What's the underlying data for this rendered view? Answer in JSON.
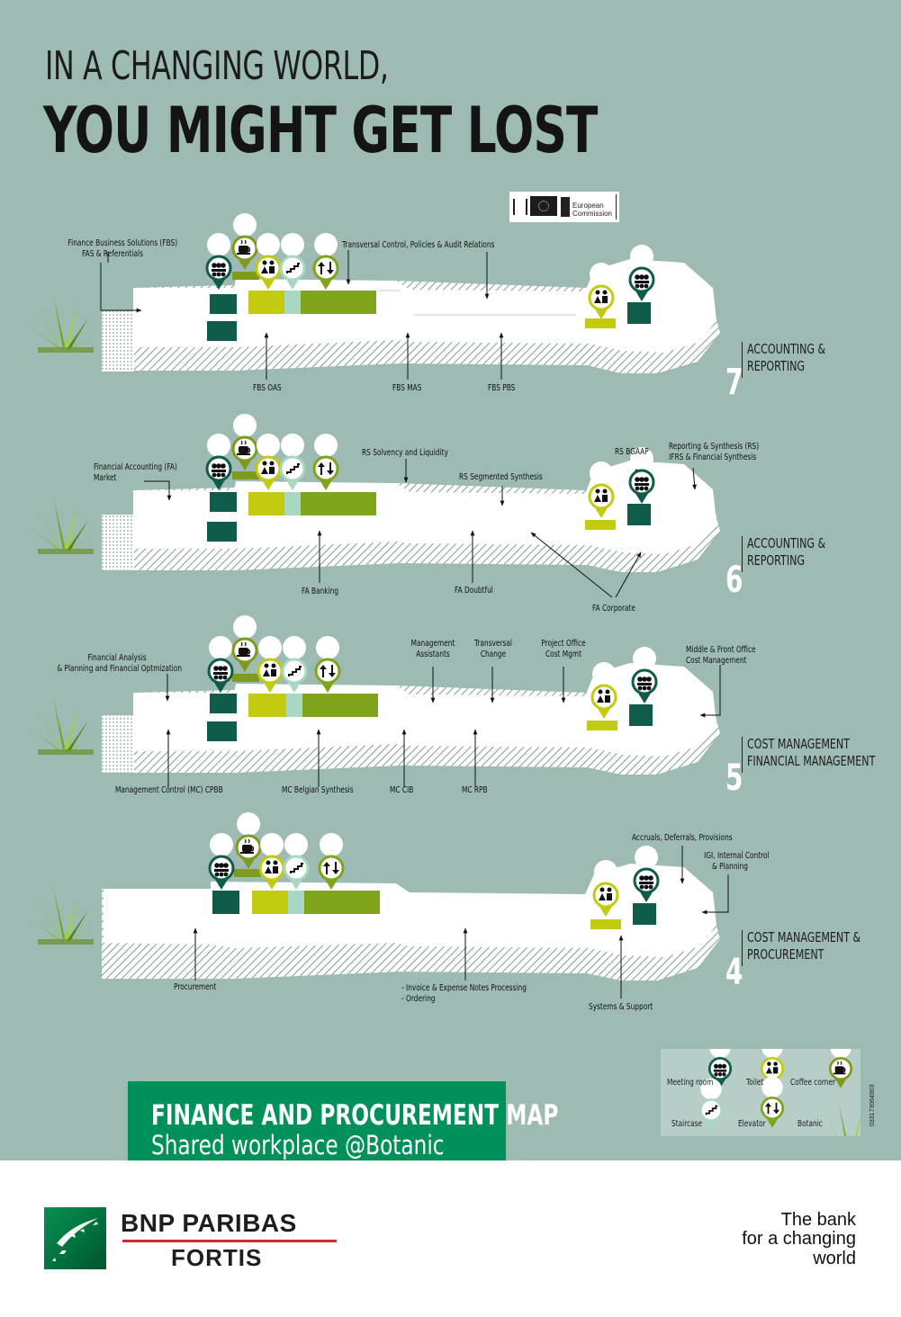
{
  "headline": {
    "line1": "IN A CHANGING WORLD,",
    "line2": "YOU MIGHT GET LOST"
  },
  "partner": {
    "name_line1": "European",
    "name_line2": "Commission"
  },
  "floors": {
    "floor7": {
      "number": "7",
      "name_line1": "ACCOUNTING &",
      "name_line2": "REPORTING",
      "labels": {
        "fbs_l1": "Finance Business Solutions (FBS)",
        "fbs_l2": "FAS & Referentials",
        "tcp": "Transversal Control, Policies & Audit Relations",
        "oas": "FBS OAS",
        "mas": "FBS MAS",
        "pbs": "FBS PBS"
      }
    },
    "floor6": {
      "number": "6",
      "name_line1": "ACCOUNTING &",
      "name_line2": "REPORTING",
      "labels": {
        "fa_l1": "Financial Accounting (FA)",
        "fa_l2": "Market",
        "rs_solv": "RS Solvency and Liquidity",
        "rs_seg": "RS Segmented Synthesis",
        "rs_bgaap": "RS BGAAP",
        "rs_l1": "Reporting & Synthesis (RS)",
        "rs_l2": "IFRS & Financial Synthesis",
        "banking": "FA Banking",
        "doubtful": "FA Doubtful",
        "corporate": "FA Corporate"
      }
    },
    "floor5": {
      "number": "5",
      "name_line1": "COST MANAGEMENT",
      "name_line2": "FINANCIAL MANAGEMENT",
      "labels": {
        "fin_l1": "Financial Analysis",
        "fin_l2": "& Planning and Financial Optmization",
        "ma_l1": "Management",
        "ma_l2": "Assistants",
        "tc_l1": "Transversal",
        "tc_l2": "Change",
        "po_l1": "Project Office",
        "po_l2": "Cost Mgmt",
        "mf_l1": "Middle & Front Office",
        "mf_l2": "Cost Management",
        "cpbb": "Management Control (MC) CPBB",
        "belgian": "MC Belgian Synthesis",
        "cib": "MC CIB",
        "rpb": "MC RPB"
      }
    },
    "floor4": {
      "number": "4",
      "name_line1": "COST MANAGEMENT &",
      "name_line2": "PROCUREMENT",
      "labels": {
        "accruals": "Accruals, Deferrals, Provisions",
        "igi_l1": "IGI, Internal Control",
        "igi_l2": "& Planning",
        "procurement": "Procurement",
        "inv_l1": "- Invoice & Expense Notes Processing",
        "inv_l2": "- Ordering",
        "systems": "Systems & Support"
      }
    }
  },
  "legend": {
    "meeting": "Meeting room",
    "toilet": "Toilet",
    "coffee": "Coffee corner",
    "staircase": "Staircase",
    "elevator": "Elevator",
    "botanic": "Botanic",
    "code": "033173064903"
  },
  "title_box": {
    "title": "FINANCE AND PROCUREMENT MAP",
    "subtitle": "Shared workplace @Botanic"
  },
  "brand": {
    "name": "BNP PARIBAS",
    "sub": "FORTIS",
    "slogan_l1": "The bank",
    "slogan_l2": "for a changing",
    "slogan_l3": "world"
  },
  "colors": {
    "background": "#9dbab3",
    "meeting": "#0f5c4b",
    "toilet": "#c2cb0f",
    "coffee": "#7f9a1e",
    "elevator": "#7ea51c",
    "staircase": "#a8d8c2",
    "brand_green": "#00915a"
  }
}
